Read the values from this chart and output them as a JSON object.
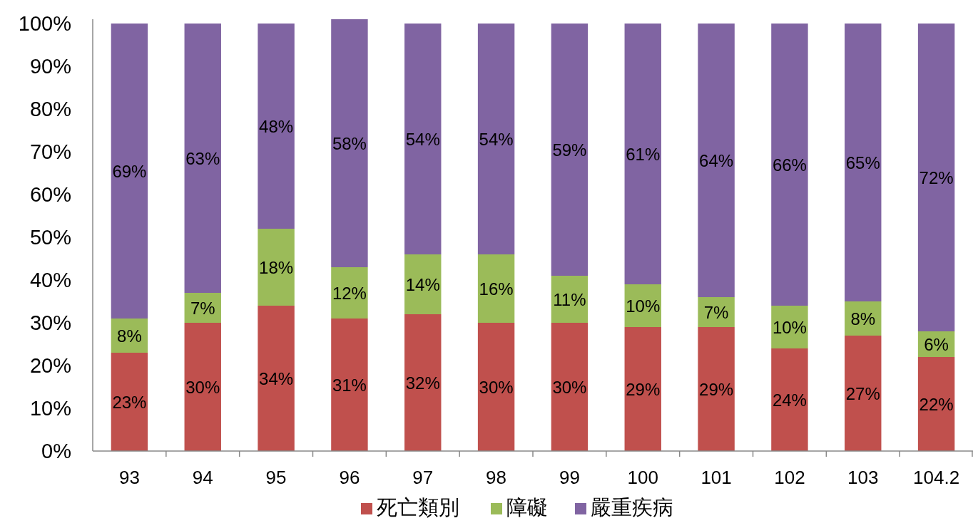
{
  "chart_data": {
    "type": "bar",
    "stacked": true,
    "categories": [
      "93",
      "94",
      "95",
      "96",
      "97",
      "98",
      "99",
      "100",
      "101",
      "102",
      "103",
      "104.2"
    ],
    "series": [
      {
        "name": "死亡類別",
        "color": "#c0504d",
        "values": [
          23,
          30,
          34,
          31,
          32,
          30,
          30,
          29,
          29,
          24,
          27,
          22
        ],
        "value_labels": [
          "23%",
          "30%",
          "34%",
          "31%",
          "32%",
          "30%",
          "30%",
          "29%",
          "29%",
          "24%",
          "27%",
          "22%"
        ]
      },
      {
        "name": "障礙",
        "color": "#9bbb59",
        "values": [
          8,
          7,
          18,
          12,
          14,
          16,
          11,
          10,
          7,
          10,
          8,
          6
        ],
        "value_labels": [
          "8%",
          "7%",
          "18%",
          "12%",
          "14%",
          "16%",
          "11%",
          "10%",
          "7%",
          "10%",
          "8%",
          "6%"
        ]
      },
      {
        "name": "嚴重疾病",
        "color": "#8064a2",
        "values": [
          69,
          63,
          48,
          58,
          54,
          54,
          59,
          61,
          64,
          66,
          65,
          72
        ],
        "value_labels": [
          "69%",
          "63%",
          "48%",
          "58%",
          "54%",
          "54%",
          "59%",
          "61%",
          "64%",
          "66%",
          "65%",
          "72%"
        ]
      }
    ],
    "ylim": [
      0,
      101
    ],
    "yticks": [
      {
        "value": 0,
        "label": "0%"
      },
      {
        "value": 10,
        "label": "10%"
      },
      {
        "value": 20,
        "label": "20%"
      },
      {
        "value": 30,
        "label": "30%"
      },
      {
        "value": 40,
        "label": "40%"
      },
      {
        "value": 50,
        "label": "50%"
      },
      {
        "value": 60,
        "label": "60%"
      },
      {
        "value": 70,
        "label": "70%"
      },
      {
        "value": 80,
        "label": "80%"
      },
      {
        "value": 90,
        "label": "90%"
      },
      {
        "value": 100,
        "label": "100%"
      }
    ],
    "legend": "bottom"
  }
}
